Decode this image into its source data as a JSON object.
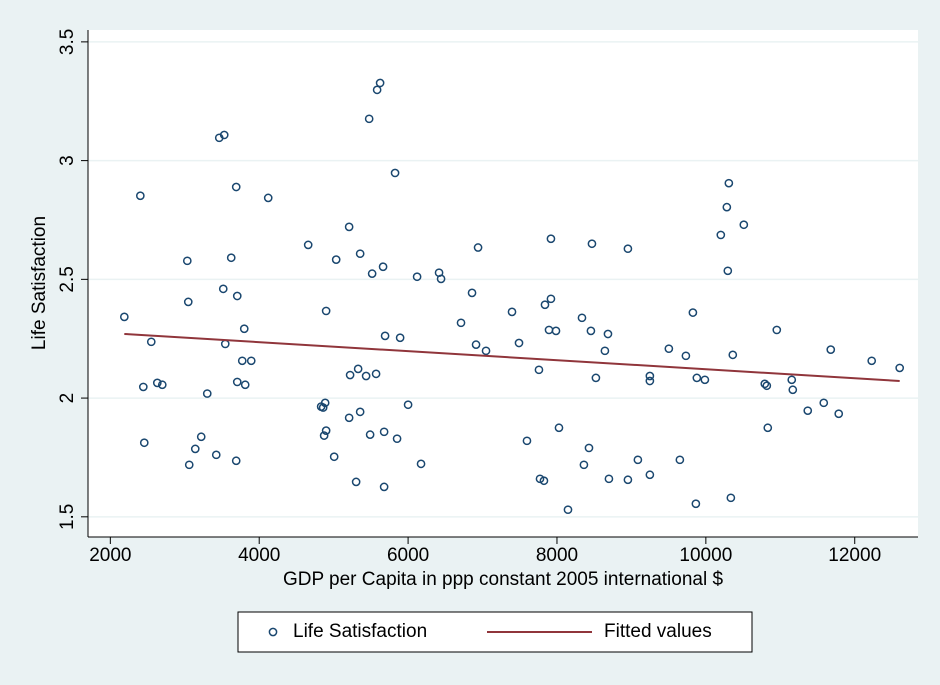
{
  "chart_data": {
    "type": "scatter",
    "xlabel": "GDP per Capita in ppp constant 2005 international $",
    "ylabel": "Life Satisfaction",
    "xlim": [
      1700,
      12850
    ],
    "ylim": [
      1.415,
      3.55
    ],
    "xticks": [
      2000,
      4000,
      6000,
      8000,
      10000,
      12000
    ],
    "yticks": [
      1.5,
      2,
      2.5,
      3,
      3.5
    ],
    "grid": true,
    "legend": "bottom",
    "series": [
      {
        "name": "Life Satisfaction",
        "color": "#1a476f",
        "mode": "markers",
        "x": [
          2188,
          2403,
          2443,
          2456,
          2550,
          2631,
          2698,
          3034,
          3047,
          3060,
          3141,
          3221,
          3302,
          3423,
          3463,
          3530,
          3517,
          3544,
          3624,
          3691,
          3691,
          3705,
          3705,
          3772,
          3799,
          3812,
          3893,
          4121,
          4658,
          4832,
          4859,
          4872,
          4886,
          4899,
          4899,
          5007,
          5034,
          5208,
          5208,
          5221,
          5302,
          5329,
          5356,
          5356,
          5436,
          5477,
          5490,
          5517,
          5570,
          5584,
          5624,
          5664,
          5678,
          5678,
          5691,
          5825,
          5852,
          5893,
          6000,
          6121,
          6174,
          6416,
          6443,
          6711,
          6859,
          6913,
          6940,
          7047,
          7396,
          7490,
          7597,
          7758,
          7772,
          7825,
          7839,
          7893,
          7919,
          7919,
          7987,
          8027,
          8148,
          8336,
          8362,
          8430,
          8456,
          8470,
          8523,
          8644,
          8685,
          8698,
          8953,
          8953,
          9087,
          9248,
          9248,
          9248,
          9503,
          9651,
          9732,
          9826,
          9866,
          9879,
          9987,
          10201,
          10282,
          10295,
          10510,
          10309,
          10362,
          10336,
          10792,
          10819,
          10832,
          10953,
          11154,
          11168,
          11369,
          11584,
          11678,
          11785,
          12228,
          12604
        ],
        "values": [
          2.342,
          2.852,
          2.047,
          1.812,
          2.237,
          2.064,
          2.056,
          2.578,
          2.405,
          1.719,
          1.786,
          1.837,
          2.019,
          1.761,
          3.096,
          3.108,
          2.46,
          2.228,
          2.591,
          1.736,
          2.889,
          2.43,
          2.068,
          2.157,
          2.292,
          2.056,
          2.157,
          2.843,
          2.645,
          1.964,
          1.96,
          1.842,
          1.98,
          2.367,
          1.863,
          1.753,
          2.583,
          2.721,
          1.917,
          2.097,
          1.647,
          2.123,
          2.608,
          1.942,
          2.093,
          3.176,
          1.846,
          2.524,
          2.102,
          3.298,
          3.327,
          2.553,
          1.858,
          1.626,
          2.262,
          2.948,
          1.829,
          2.254,
          1.972,
          2.511,
          1.723,
          2.528,
          2.502,
          2.317,
          2.443,
          2.225,
          2.634,
          2.199,
          2.363,
          2.232,
          1.82,
          2.119,
          1.66,
          1.652,
          2.393,
          2.287,
          2.671,
          2.418,
          2.283,
          1.875,
          1.53,
          2.338,
          1.719,
          1.79,
          2.283,
          2.65,
          2.085,
          2.199,
          2.27,
          1.66,
          2.629,
          1.656,
          1.74,
          2.093,
          2.072,
          1.677,
          2.208,
          1.74,
          2.178,
          2.36,
          1.555,
          2.085,
          2.077,
          2.687,
          2.804,
          2.536,
          2.73,
          2.905,
          2.182,
          1.58,
          2.06,
          2.052,
          1.875,
          2.287,
          2.077,
          2.035,
          1.947,
          1.98,
          2.204,
          1.934,
          2.157,
          2.127
        ]
      },
      {
        "name": "Fitted values",
        "color": "#90353b",
        "mode": "line",
        "x": [
          2188,
          12604
        ],
        "values": [
          2.27,
          2.072
        ]
      }
    ]
  }
}
